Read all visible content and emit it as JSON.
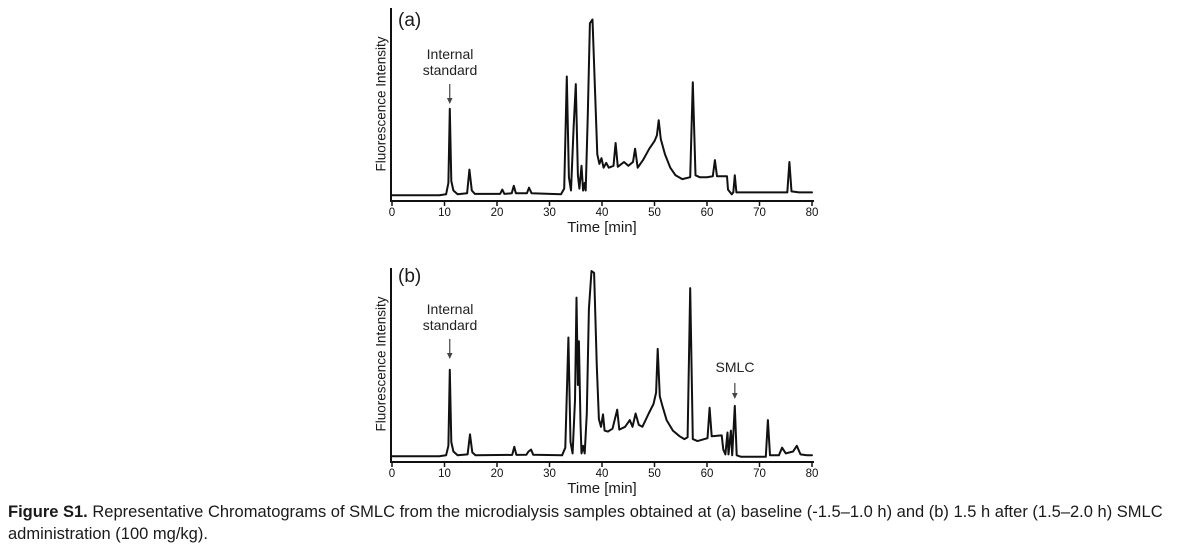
{
  "chart_data": [
    {
      "type": "line",
      "id": "a",
      "panel_label": "(a)",
      "xlabel": "Time [min]",
      "ylabel": "Fluorescence Intensity",
      "xlim": [
        0,
        80
      ],
      "xticks": [
        0,
        10,
        20,
        30,
        40,
        50,
        60,
        70,
        80
      ],
      "ylim": [
        0,
        1
      ],
      "grid": false,
      "line_color": "#111111",
      "description": "baseline microdialysis chromatogram",
      "annotations": [
        {
          "text": "Internal standard",
          "t": 11
        }
      ],
      "series": [
        {
          "name": "fluorescence trace (a)",
          "points": [
            [
              0,
              0.025
            ],
            [
              9,
              0.025
            ],
            [
              10.3,
              0.03
            ],
            [
              10.75,
              0.09
            ],
            [
              11.0,
              0.48
            ],
            [
              11.3,
              0.1
            ],
            [
              11.7,
              0.05
            ],
            [
              12.5,
              0.03
            ],
            [
              14.3,
              0.035
            ],
            [
              14.75,
              0.16
            ],
            [
              15.2,
              0.05
            ],
            [
              15.8,
              0.032
            ],
            [
              20.6,
              0.032
            ],
            [
              21.0,
              0.055
            ],
            [
              21.4,
              0.032
            ],
            [
              22.8,
              0.035
            ],
            [
              23.2,
              0.075
            ],
            [
              23.6,
              0.035
            ],
            [
              25.7,
              0.035
            ],
            [
              26.1,
              0.065
            ],
            [
              26.6,
              0.035
            ],
            [
              32.2,
              0.03
            ],
            [
              32.8,
              0.06
            ],
            [
              33.3,
              0.65
            ],
            [
              33.7,
              0.12
            ],
            [
              34.1,
              0.05
            ],
            [
              34.6,
              0.38
            ],
            [
              35.0,
              0.61
            ],
            [
              35.4,
              0.13
            ],
            [
              35.7,
              0.06
            ],
            [
              36.1,
              0.18
            ],
            [
              36.4,
              0.05
            ],
            [
              36.7,
              0.09
            ],
            [
              36.9,
              0.05
            ],
            [
              37.3,
              0.45
            ],
            [
              37.7,
              0.93
            ],
            [
              38.2,
              0.95
            ],
            [
              38.7,
              0.55
            ],
            [
              39.1,
              0.24
            ],
            [
              39.5,
              0.19
            ],
            [
              39.9,
              0.22
            ],
            [
              40.3,
              0.17
            ],
            [
              40.8,
              0.195
            ],
            [
              41.3,
              0.17
            ],
            [
              42.2,
              0.18
            ],
            [
              42.6,
              0.3
            ],
            [
              43.0,
              0.175
            ],
            [
              44.2,
              0.2
            ],
            [
              45.0,
              0.18
            ],
            [
              45.9,
              0.2
            ],
            [
              46.3,
              0.27
            ],
            [
              46.8,
              0.17
            ],
            [
              47.8,
              0.21
            ],
            [
              49.0,
              0.27
            ],
            [
              50.0,
              0.31
            ],
            [
              50.45,
              0.34
            ],
            [
              50.8,
              0.42
            ],
            [
              51.2,
              0.32
            ],
            [
              52.0,
              0.24
            ],
            [
              53.0,
              0.17
            ],
            [
              54.0,
              0.13
            ],
            [
              55.3,
              0.11
            ],
            [
              56.8,
              0.12
            ],
            [
              57.3,
              0.62
            ],
            [
              57.8,
              0.13
            ],
            [
              58.6,
              0.12
            ],
            [
              60.0,
              0.12
            ],
            [
              61.1,
              0.125
            ],
            [
              61.5,
              0.21
            ],
            [
              61.9,
              0.125
            ],
            [
              63.8,
              0.125
            ],
            [
              64.0,
              0.055
            ],
            [
              64.7,
              0.03
            ],
            [
              65.0,
              0.04
            ],
            [
              65.3,
              0.13
            ],
            [
              65.6,
              0.04
            ],
            [
              66.2,
              0.04
            ],
            [
              75.3,
              0.04
            ],
            [
              75.7,
              0.2
            ],
            [
              76.1,
              0.045
            ],
            [
              77.5,
              0.04
            ],
            [
              80,
              0.04
            ]
          ]
        }
      ]
    },
    {
      "type": "line",
      "id": "b",
      "panel_label": "(b)",
      "xlabel": "Time [min]",
      "ylabel": "Fluorescence Intensity",
      "xlim": [
        0,
        80
      ],
      "xticks": [
        0,
        10,
        20,
        30,
        40,
        50,
        60,
        70,
        80
      ],
      "ylim": [
        0,
        1
      ],
      "grid": false,
      "line_color": "#111111",
      "description": "chromatogram 1.5 h after SMLC administration",
      "annotations": [
        {
          "text": "Internal standard",
          "t": 11
        },
        {
          "text": "SMLC",
          "t": 65.3
        }
      ],
      "series": [
        {
          "name": "fluorescence trace (b)",
          "points": [
            [
              0,
              0.025
            ],
            [
              9,
              0.025
            ],
            [
              10.3,
              0.03
            ],
            [
              10.75,
              0.08
            ],
            [
              11.0,
              0.48
            ],
            [
              11.3,
              0.1
            ],
            [
              11.7,
              0.05
            ],
            [
              12.5,
              0.03
            ],
            [
              14.4,
              0.035
            ],
            [
              14.85,
              0.14
            ],
            [
              15.3,
              0.045
            ],
            [
              15.9,
              0.03
            ],
            [
              22.9,
              0.032
            ],
            [
              23.3,
              0.075
            ],
            [
              23.7,
              0.032
            ],
            [
              25.6,
              0.033
            ],
            [
              26.0,
              0.05
            ],
            [
              26.5,
              0.06
            ],
            [
              26.9,
              0.033
            ],
            [
              32.4,
              0.03
            ],
            [
              33.0,
              0.07
            ],
            [
              33.6,
              0.65
            ],
            [
              34.0,
              0.1
            ],
            [
              34.4,
              0.04
            ],
            [
              34.85,
              0.32
            ],
            [
              35.15,
              0.86
            ],
            [
              35.4,
              0.4
            ],
            [
              35.6,
              0.63
            ],
            [
              35.9,
              0.2
            ],
            [
              36.1,
              0.04
            ],
            [
              36.4,
              0.08
            ],
            [
              36.7,
              0.04
            ],
            [
              37.1,
              0.25
            ],
            [
              37.5,
              0.8
            ],
            [
              38.0,
              1.0
            ],
            [
              38.5,
              0.99
            ],
            [
              39.0,
              0.5
            ],
            [
              39.4,
              0.22
            ],
            [
              39.8,
              0.18
            ],
            [
              40.2,
              0.245
            ],
            [
              40.5,
              0.16
            ],
            [
              41.1,
              0.155
            ],
            [
              42.0,
              0.17
            ],
            [
              42.9,
              0.27
            ],
            [
              43.3,
              0.165
            ],
            [
              44.4,
              0.18
            ],
            [
              45.3,
              0.215
            ],
            [
              45.8,
              0.18
            ],
            [
              46.4,
              0.25
            ],
            [
              47.0,
              0.19
            ],
            [
              47.7,
              0.18
            ],
            [
              48.9,
              0.25
            ],
            [
              49.8,
              0.3
            ],
            [
              50.3,
              0.36
            ],
            [
              50.6,
              0.59
            ],
            [
              51.0,
              0.34
            ],
            [
              51.5,
              0.29
            ],
            [
              52.3,
              0.215
            ],
            [
              53.5,
              0.16
            ],
            [
              54.8,
              0.13
            ],
            [
              55.7,
              0.115
            ],
            [
              56.3,
              0.125
            ],
            [
              56.8,
              0.91
            ],
            [
              57.3,
              0.115
            ],
            [
              58.2,
              0.105
            ],
            [
              59.5,
              0.115
            ],
            [
              60.1,
              0.12
            ],
            [
              60.5,
              0.28
            ],
            [
              60.9,
              0.13
            ],
            [
              62.8,
              0.135
            ],
            [
              63.1,
              0.06
            ],
            [
              63.5,
              0.035
            ],
            [
              63.9,
              0.15
            ],
            [
              64.1,
              0.035
            ],
            [
              64.55,
              0.16
            ],
            [
              64.8,
              0.03
            ],
            [
              65.3,
              0.29
            ],
            [
              65.65,
              0.03
            ],
            [
              66.5,
              0.022
            ],
            [
              71.2,
              0.022
            ],
            [
              71.6,
              0.215
            ],
            [
              72.0,
              0.03
            ],
            [
              73.7,
              0.03
            ],
            [
              74.3,
              0.07
            ],
            [
              75.0,
              0.04
            ],
            [
              76.4,
              0.05
            ],
            [
              77.1,
              0.08
            ],
            [
              77.8,
              0.035
            ],
            [
              79.0,
              0.03
            ],
            [
              80,
              0.03
            ]
          ]
        }
      ]
    }
  ],
  "caption": {
    "label": "Figure S1.",
    "text": "Representative Chromatograms of SMLC from the microdialysis samples obtained at (a) baseline (-1.5–1.0 h) and (b) 1.5 h after (1.5–2.0 h) SMLC administration (100 mg/kg)."
  },
  "colors": {
    "ink": "#111111",
    "background": "#ffffff",
    "arrow": "#444444"
  }
}
